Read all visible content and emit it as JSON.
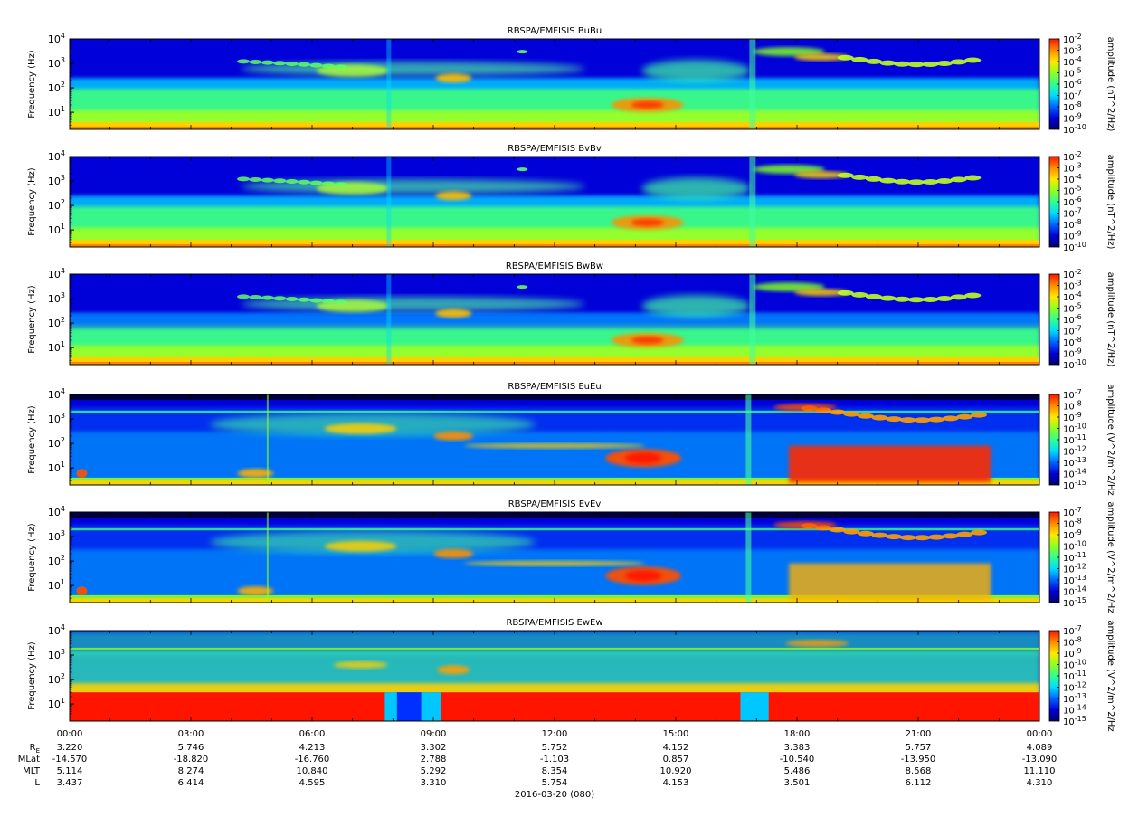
{
  "chart_data": [
    {
      "type": "heatmap",
      "title": "RBSPA/EMFISIS  BuBu",
      "ylabel": "Frequency (Hz)",
      "yscale": "log",
      "ylim": [
        2,
        10000
      ],
      "yticks": [
        {
          "base": "10",
          "exp": "1",
          "v": 10
        },
        {
          "base": "10",
          "exp": "2",
          "v": 100
        },
        {
          "base": "10",
          "exp": "3",
          "v": 1000
        },
        {
          "base": "10",
          "exp": "4",
          "v": 10000
        }
      ],
      "colorbar": {
        "label": "amplitude (nT^2/Hz)",
        "ticks": [
          {
            "base": "10",
            "exp": "-2"
          },
          {
            "base": "10",
            "exp": "-3"
          },
          {
            "base": "10",
            "exp": "-4"
          },
          {
            "base": "10",
            "exp": "-5"
          },
          {
            "base": "10",
            "exp": "-6"
          },
          {
            "base": "10",
            "exp": "-7"
          },
          {
            "base": "10",
            "exp": "-8"
          },
          {
            "base": "10",
            "exp": "-9"
          },
          {
            "base": "10",
            "exp": "-10"
          }
        ],
        "range_exp": [
          -10,
          -2
        ]
      }
    },
    {
      "type": "heatmap",
      "title": "RBSPA/EMFISIS  BvBv",
      "ylabel": "Frequency (Hz)",
      "yscale": "log",
      "ylim": [
        2,
        10000
      ],
      "yticks": [
        {
          "base": "10",
          "exp": "1",
          "v": 10
        },
        {
          "base": "10",
          "exp": "2",
          "v": 100
        },
        {
          "base": "10",
          "exp": "3",
          "v": 1000
        },
        {
          "base": "10",
          "exp": "4",
          "v": 10000
        }
      ],
      "colorbar": {
        "label": "amplitude (nT^2/Hz)",
        "ticks": [
          {
            "base": "10",
            "exp": "-2"
          },
          {
            "base": "10",
            "exp": "-3"
          },
          {
            "base": "10",
            "exp": "-4"
          },
          {
            "base": "10",
            "exp": "-5"
          },
          {
            "base": "10",
            "exp": "-6"
          },
          {
            "base": "10",
            "exp": "-7"
          },
          {
            "base": "10",
            "exp": "-8"
          },
          {
            "base": "10",
            "exp": "-9"
          },
          {
            "base": "10",
            "exp": "-10"
          }
        ],
        "range_exp": [
          -10,
          -2
        ]
      }
    },
    {
      "type": "heatmap",
      "title": "RBSPA/EMFISIS  BwBw",
      "ylabel": "Frequency (Hz)",
      "yscale": "log",
      "ylim": [
        2,
        10000
      ],
      "yticks": [
        {
          "base": "10",
          "exp": "1",
          "v": 10
        },
        {
          "base": "10",
          "exp": "2",
          "v": 100
        },
        {
          "base": "10",
          "exp": "3",
          "v": 1000
        },
        {
          "base": "10",
          "exp": "4",
          "v": 10000
        }
      ],
      "colorbar": {
        "label": "amplitude (nT^2/Hz)",
        "ticks": [
          {
            "base": "10",
            "exp": "-2"
          },
          {
            "base": "10",
            "exp": "-3"
          },
          {
            "base": "10",
            "exp": "-4"
          },
          {
            "base": "10",
            "exp": "-5"
          },
          {
            "base": "10",
            "exp": "-6"
          },
          {
            "base": "10",
            "exp": "-7"
          },
          {
            "base": "10",
            "exp": "-8"
          },
          {
            "base": "10",
            "exp": "-9"
          },
          {
            "base": "10",
            "exp": "-10"
          }
        ],
        "range_exp": [
          -10,
          -2
        ]
      }
    },
    {
      "type": "heatmap",
      "title": "RBSPA/EMFISIS  EuEu",
      "ylabel": "Frequency (Hz)",
      "yscale": "log",
      "ylim": [
        2,
        10000
      ],
      "yticks": [
        {
          "base": "10",
          "exp": "1",
          "v": 10
        },
        {
          "base": "10",
          "exp": "2",
          "v": 100
        },
        {
          "base": "10",
          "exp": "3",
          "v": 1000
        },
        {
          "base": "10",
          "exp": "4",
          "v": 10000
        }
      ],
      "colorbar": {
        "label": "amplitude (V^2/m^2/Hz",
        "ticks": [
          {
            "base": "10",
            "exp": "-7"
          },
          {
            "base": "10",
            "exp": "-8"
          },
          {
            "base": "10",
            "exp": "-9"
          },
          {
            "base": "10",
            "exp": "-10"
          },
          {
            "base": "10",
            "exp": "-11"
          },
          {
            "base": "10",
            "exp": "-12"
          },
          {
            "base": "10",
            "exp": "-13"
          },
          {
            "base": "10",
            "exp": "-14"
          },
          {
            "base": "10",
            "exp": "-15"
          }
        ],
        "range_exp": [
          -15,
          -7
        ]
      }
    },
    {
      "type": "heatmap",
      "title": "RBSPA/EMFISIS  EvEv",
      "ylabel": "Frequency (Hz)",
      "yscale": "log",
      "ylim": [
        2,
        10000
      ],
      "yticks": [
        {
          "base": "10",
          "exp": "1",
          "v": 10
        },
        {
          "base": "10",
          "exp": "2",
          "v": 100
        },
        {
          "base": "10",
          "exp": "3",
          "v": 1000
        },
        {
          "base": "10",
          "exp": "4",
          "v": 10000
        }
      ],
      "colorbar": {
        "label": "amplitude (V^2/m^2/Hz",
        "ticks": [
          {
            "base": "10",
            "exp": "-7"
          },
          {
            "base": "10",
            "exp": "-8"
          },
          {
            "base": "10",
            "exp": "-9"
          },
          {
            "base": "10",
            "exp": "-10"
          },
          {
            "base": "10",
            "exp": "-11"
          },
          {
            "base": "10",
            "exp": "-12"
          },
          {
            "base": "10",
            "exp": "-13"
          },
          {
            "base": "10",
            "exp": "-14"
          },
          {
            "base": "10",
            "exp": "-15"
          }
        ],
        "range_exp": [
          -15,
          -7
        ]
      }
    },
    {
      "type": "heatmap",
      "title": "RBSPA/EMFISIS  EwEw",
      "ylabel": "Frequency (Hz)",
      "yscale": "log",
      "ylim": [
        2,
        10000
      ],
      "yticks": [
        {
          "base": "10",
          "exp": "1",
          "v": 10
        },
        {
          "base": "10",
          "exp": "2",
          "v": 100
        },
        {
          "base": "10",
          "exp": "3",
          "v": 1000
        },
        {
          "base": "10",
          "exp": "4",
          "v": 10000
        }
      ],
      "colorbar": {
        "label": "amplitude (V^2/m^2/Hz",
        "ticks": [
          {
            "base": "10",
            "exp": "-7"
          },
          {
            "base": "10",
            "exp": "-8"
          },
          {
            "base": "10",
            "exp": "-9"
          },
          {
            "base": "10",
            "exp": "-10"
          },
          {
            "base": "10",
            "exp": "-11"
          },
          {
            "base": "10",
            "exp": "-12"
          },
          {
            "base": "10",
            "exp": "-13"
          },
          {
            "base": "10",
            "exp": "-14"
          },
          {
            "base": "10",
            "exp": "-15"
          }
        ],
        "range_exp": [
          -15,
          -7
        ]
      }
    }
  ],
  "time_axis": {
    "ticks": [
      "00:00",
      "03:00",
      "06:00",
      "09:00",
      "12:00",
      "15:00",
      "18:00",
      "21:00",
      "00:00"
    ],
    "minor_per_major": 4,
    "date_label": "2016-03-20 (080)",
    "ephemeris": [
      {
        "label": "R",
        "sub": "E",
        "values": [
          "3.220",
          "5.746",
          "4.213",
          "3.302",
          "5.752",
          "4.152",
          "3.383",
          "5.757",
          "4.089"
        ]
      },
      {
        "label": "MLat",
        "sub": "",
        "values": [
          "-14.570",
          "-18.820",
          "-16.760",
          "2.788",
          "-1.103",
          "0.857",
          "-10.540",
          "-13.950",
          "-13.090"
        ]
      },
      {
        "label": "MLT",
        "sub": "",
        "values": [
          "5.114",
          "8.274",
          "10.840",
          "5.292",
          "8.354",
          "10.920",
          "5.486",
          "8.568",
          "11.110"
        ]
      },
      {
        "label": "L",
        "sub": "",
        "values": [
          "3.437",
          "6.414",
          "4.595",
          "3.310",
          "5.754",
          "4.153",
          "3.501",
          "6.112",
          "4.310"
        ]
      }
    ]
  },
  "colors": {
    "colormap": [
      "#00006e",
      "#0000d8",
      "#0064ff",
      "#00dcff",
      "#30ff90",
      "#90ff20",
      "#ffe800",
      "#ff8a00",
      "#ff1400"
    ]
  }
}
